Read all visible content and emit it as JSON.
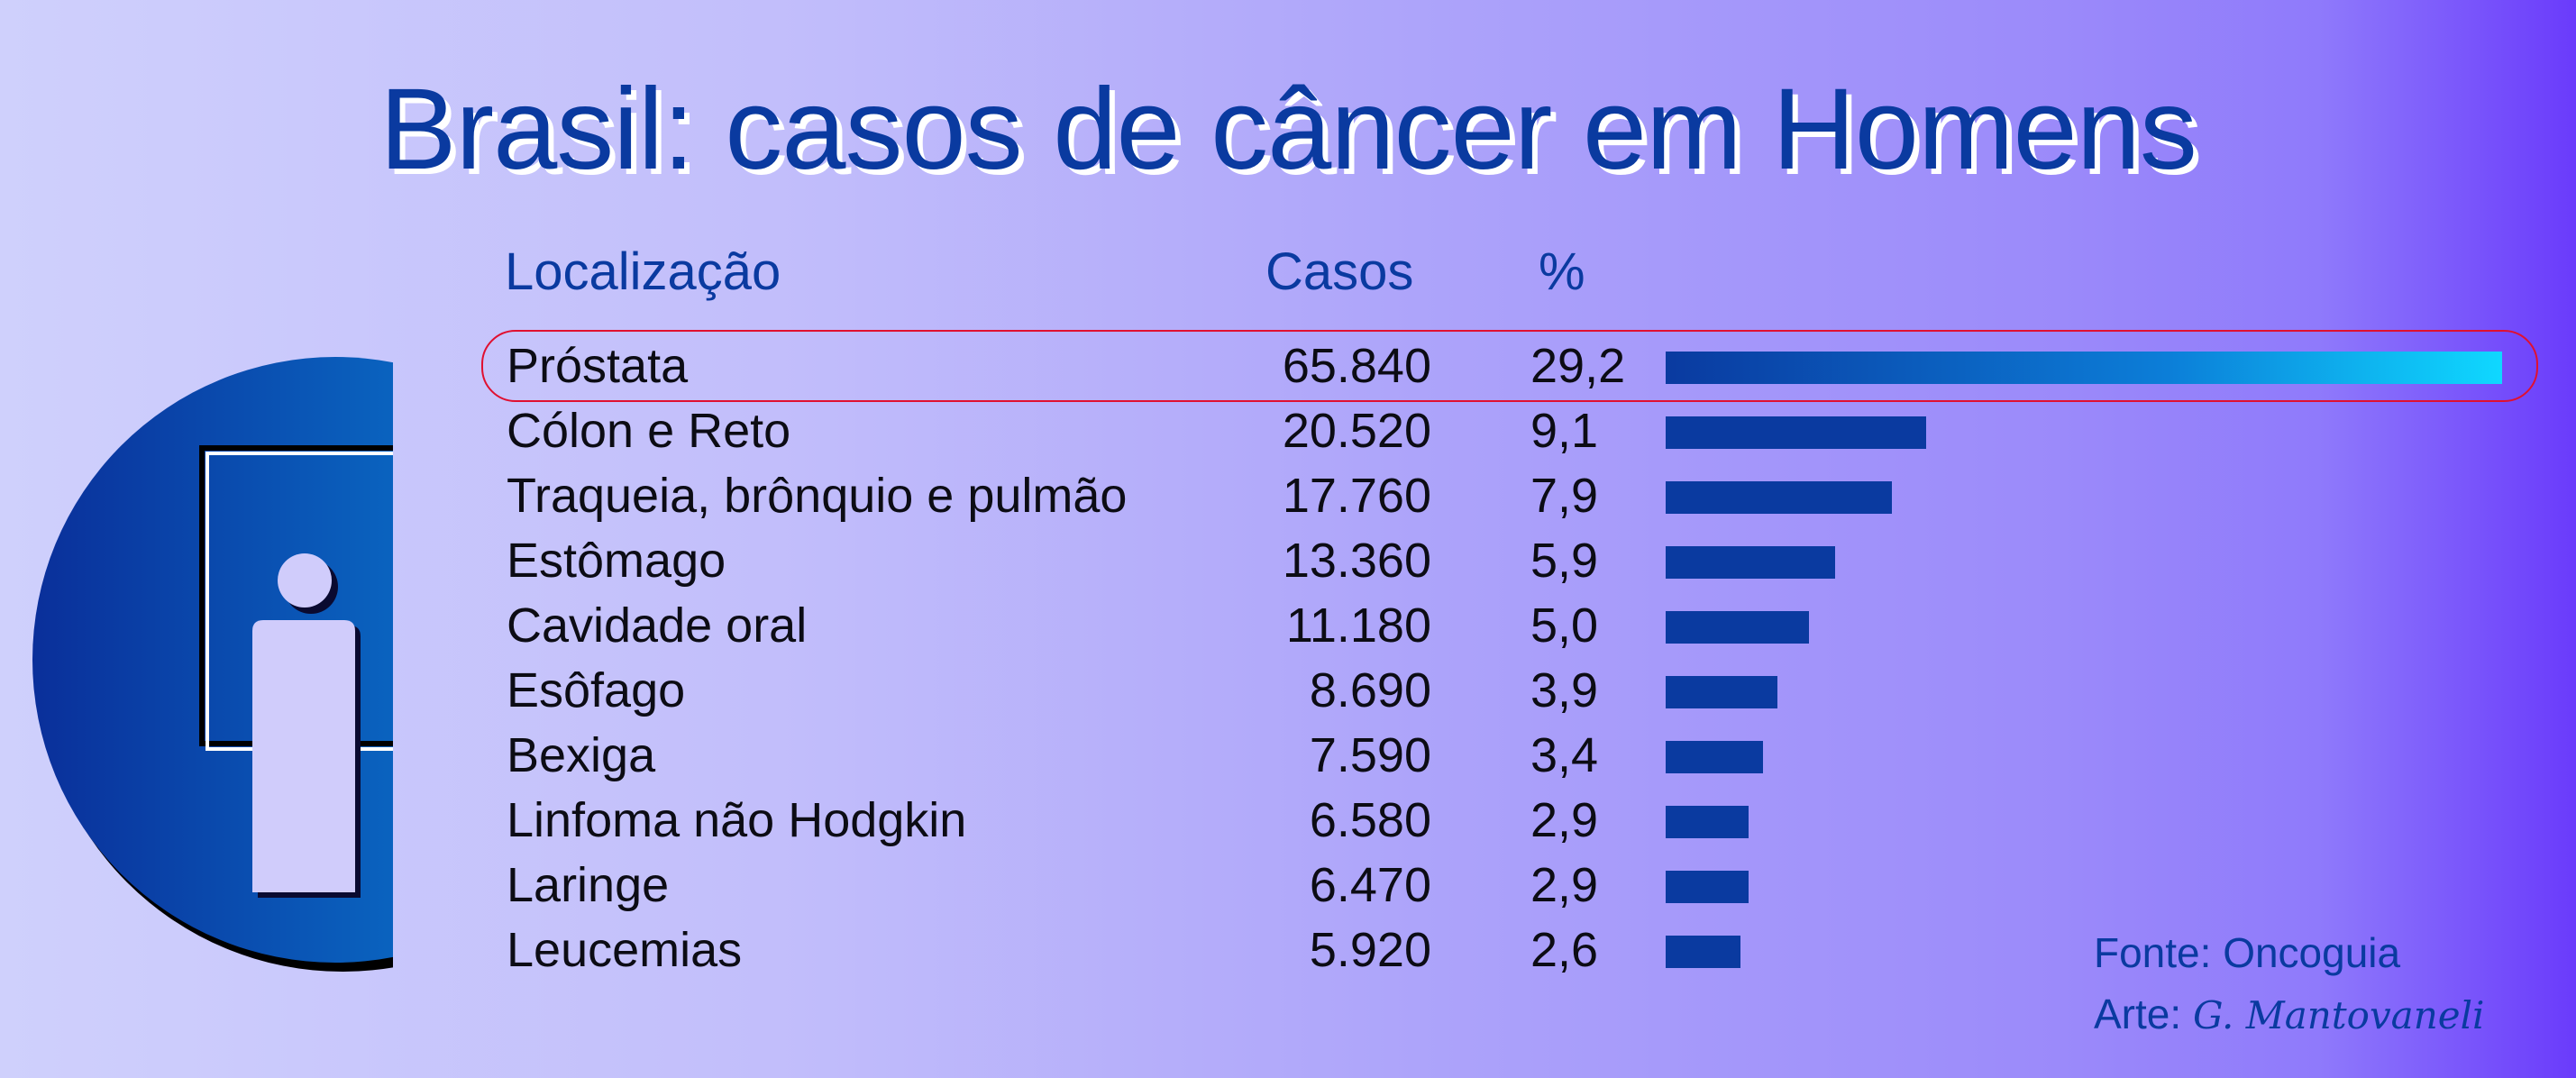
{
  "chart_data": {
    "type": "table",
    "title": "Brasil: casos de câncer em Homens",
    "columns": [
      "Localização",
      "Casos",
      "%"
    ],
    "rows": [
      {
        "localizacao": "Próstata",
        "casos": "65.840",
        "pct": "29,2",
        "value": 29.2
      },
      {
        "localizacao": "Cólon e Reto",
        "casos": "20.520",
        "pct": "9,1",
        "value": 9.1
      },
      {
        "localizacao": "Traqueia, brônquio e pulmão",
        "casos": "17.760",
        "pct": "7,9",
        "value": 7.9
      },
      {
        "localizacao": "Estômago",
        "casos": "13.360",
        "pct": "5,9",
        "value": 5.9
      },
      {
        "localizacao": "Cavidade oral",
        "casos": "11.180",
        "pct": "5,0",
        "value": 5.0
      },
      {
        "localizacao": "Esôfago",
        "casos": "8.690",
        "pct": "3,9",
        "value": 3.9
      },
      {
        "localizacao": "Bexiga",
        "casos": "7.590",
        "pct": "3,4",
        "value": 3.4
      },
      {
        "localizacao": "Linfoma não Hodgkin",
        "casos": "6.580",
        "pct": "2,9",
        "value": 2.9
      },
      {
        "localizacao": "Laringe",
        "casos": "6.470",
        "pct": "2,9",
        "value": 2.9
      },
      {
        "localizacao": "Leucemias",
        "casos": "5.920",
        "pct": "2,6",
        "value": 2.6
      }
    ],
    "highlighted_row": "Próstata",
    "colors": {
      "bar": "#0a3aa0",
      "highlight_bar_end": "#0fd8ff",
      "highlight_outline": "#e01030"
    }
  },
  "footer": {
    "source": "Fonte: Oncoguia",
    "credit_label": "Arte: ",
    "credit_name": "G. Mantovaneli"
  },
  "icon": {
    "name": "male-figure-icon"
  }
}
